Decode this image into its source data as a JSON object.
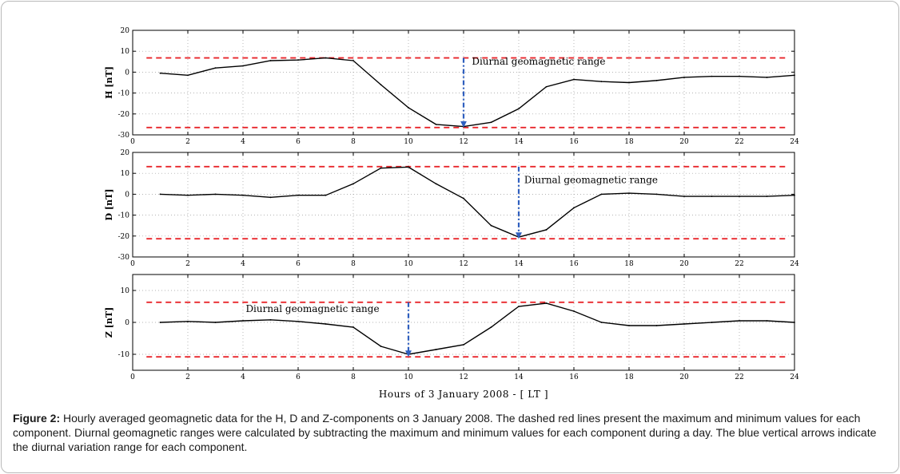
{
  "chart_data": [
    {
      "type": "line",
      "ylabel": "H [nT]",
      "ylim": [
        -30,
        20
      ],
      "yticks": [
        -30,
        -20,
        -10,
        0,
        10,
        20
      ],
      "xlim": [
        0,
        24
      ],
      "xticks": [
        0,
        2,
        4,
        6,
        8,
        10,
        12,
        14,
        16,
        18,
        20,
        22,
        24
      ],
      "grid": true,
      "x": [
        1,
        2,
        3,
        4,
        5,
        6,
        7,
        8,
        9,
        10,
        11,
        12,
        13,
        14,
        15,
        16,
        17,
        18,
        19,
        20,
        21,
        22,
        23,
        24
      ],
      "values": [
        -0.5,
        -1.5,
        2,
        3,
        5.5,
        5.8,
        6.8,
        5.5,
        -6,
        -17,
        -25,
        -26,
        -24,
        -17.5,
        -7,
        -3.5,
        -4.5,
        -5,
        -4,
        -2.5,
        -2,
        -2,
        -2.5,
        -1.5
      ],
      "max_line": 6.8,
      "min_line": -26.5,
      "annotation": "Diurnal geomagnetic range",
      "arrow_x": 12
    },
    {
      "type": "line",
      "ylabel": "D [nT]",
      "ylim": [
        -30,
        20
      ],
      "yticks": [
        -30,
        -20,
        -10,
        0,
        10,
        20
      ],
      "xlim": [
        0,
        24
      ],
      "xticks": [
        0,
        2,
        4,
        6,
        8,
        10,
        12,
        14,
        16,
        18,
        20,
        22,
        24
      ],
      "grid": true,
      "x": [
        1,
        2,
        3,
        4,
        5,
        6,
        7,
        8,
        9,
        10,
        11,
        12,
        13,
        14,
        15,
        16,
        17,
        18,
        19,
        20,
        21,
        22,
        23,
        24
      ],
      "values": [
        0,
        -0.5,
        0,
        -0.5,
        -1.5,
        -0.5,
        -0.5,
        5,
        12.5,
        13,
        5,
        -2,
        -15,
        -20.5,
        -17,
        -6.5,
        0,
        0.5,
        0,
        -1,
        -1,
        -1,
        -1,
        -0.5
      ],
      "max_line": 13.2,
      "min_line": -21.3,
      "annotation": "Diurnal geomagnetic range",
      "arrow_x": 14
    },
    {
      "type": "line",
      "ylabel": "Z [nT]",
      "ylim": [
        -15,
        15
      ],
      "yticks": [
        -10,
        0,
        10
      ],
      "xlim": [
        0,
        24
      ],
      "xticks": [
        0,
        2,
        4,
        6,
        8,
        10,
        12,
        14,
        16,
        18,
        20,
        22,
        24
      ],
      "xlabel": "Hours of 3 January 2008 - [ LT ]",
      "grid": true,
      "x": [
        1,
        2,
        3,
        4,
        5,
        6,
        7,
        8,
        9,
        10,
        11,
        12,
        13,
        14,
        15,
        16,
        17,
        18,
        19,
        20,
        21,
        22,
        23,
        24
      ],
      "values": [
        0,
        0.3,
        0,
        0.5,
        0.8,
        0.3,
        -0.5,
        -1.5,
        -7.5,
        -10,
        -8.5,
        -7,
        -1.5,
        5,
        6,
        3.5,
        0,
        -1,
        -1,
        -0.5,
        0,
        0.5,
        0.5,
        0
      ],
      "max_line": 6.3,
      "min_line": -10.8,
      "annotation": "Diurnal geomagnetic range",
      "arrow_x": 10
    }
  ],
  "colors": {
    "data_line": "#000000",
    "range_lines": "#e8262b",
    "arrow": "#2f5fbf",
    "grid": "#9a9a9a"
  },
  "caption": {
    "label": "Figure 2:",
    "text": " Hourly averaged geomagnetic data for the H, D and Z-components on 3 January 2008. The dashed red lines present the maximum and minimum values for each component. Diurnal geomagnetic ranges were calculated by subtracting the maximum and minimum values for each component during a day. The blue vertical arrows indicate the diurnal variation range for each component."
  }
}
